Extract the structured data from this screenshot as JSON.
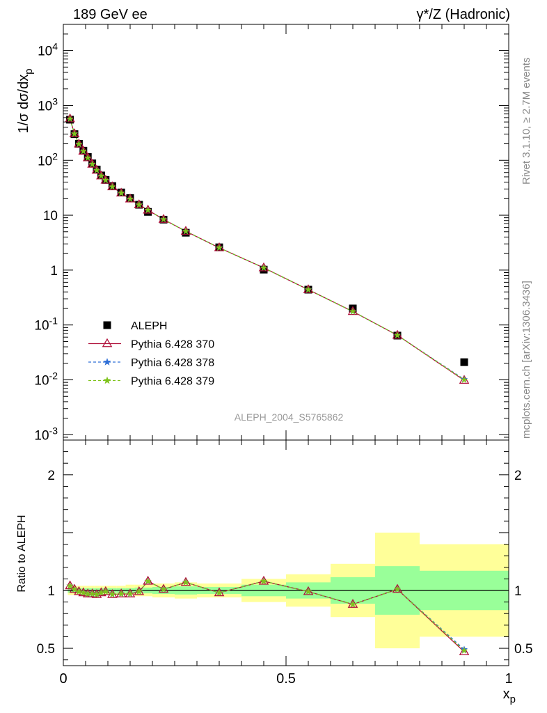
{
  "header": {
    "left_title": "189 GeV ee",
    "right_title": "γ*/Z (Hadronic)"
  },
  "side_labels": {
    "rivet": "Rivet 3.1.10, ≥ 2.7M events",
    "mcplots": "mcplots.cern.ch [arXiv:1306.3436]"
  },
  "watermark": "ALEPH_2004_S5765862",
  "colors": {
    "data": "#000000",
    "mc370": "#b0103a",
    "mc378": "#2f6fd6",
    "mc379": "#7fc31c",
    "band_outer": "#ffff99",
    "band_inner": "#99ff99"
  },
  "chart_data": [
    {
      "type": "scatter",
      "role": "main",
      "ylabel": "1/σ dσ/dx_p",
      "ylog": true,
      "xlim": [
        0,
        1
      ],
      "ylim": [
        0.0008,
        30000
      ],
      "yticks": [
        {
          "v": 0.001,
          "label": "10^-3"
        },
        {
          "v": 0.01,
          "label": "10^-2"
        },
        {
          "v": 0.1,
          "label": "10^-1"
        },
        {
          "v": 1,
          "label": "1"
        },
        {
          "v": 10,
          "label": "10"
        },
        {
          "v": 100,
          "label": "10^2"
        },
        {
          "v": 1000,
          "label": "10^3"
        },
        {
          "v": 10000,
          "label": "10^4"
        }
      ],
      "legend": {
        "position": "middle-left",
        "entries": [
          {
            "label": "ALEPH",
            "style": "data"
          },
          {
            "label": "Pythia 6.428 370",
            "style": "mc370"
          },
          {
            "label": "Pythia 6.428 378",
            "style": "mc378"
          },
          {
            "label": "Pythia 6.428 379",
            "style": "mc379"
          }
        ]
      },
      "x": [
        0.015,
        0.025,
        0.035,
        0.045,
        0.055,
        0.065,
        0.075,
        0.085,
        0.095,
        0.11,
        0.13,
        0.15,
        0.17,
        0.19,
        0.225,
        0.275,
        0.35,
        0.45,
        0.55,
        0.65,
        0.75,
        0.9
      ],
      "series": [
        {
          "name": "ALEPH",
          "values": [
            550,
            300,
            200,
            150,
            115,
            88,
            68,
            53,
            44,
            34,
            26,
            20.5,
            15.5,
            11.5,
            8.3,
            4.8,
            2.6,
            1.02,
            0.44,
            0.2,
            0.064,
            0.021
          ]
        },
        {
          "name": "Pythia 6.428 370",
          "values": [
            570,
            305,
            198,
            147,
            111,
            85,
            66,
            52,
            43.5,
            33,
            25.3,
            19.8,
            15.5,
            12.4,
            8.4,
            5.1,
            2.55,
            1.1,
            0.44,
            0.176,
            0.065,
            0.0098
          ]
        },
        {
          "name": "Pythia 6.428 378",
          "values": [
            570,
            305,
            198,
            147,
            111,
            85,
            66,
            52,
            43.5,
            33,
            25.3,
            19.8,
            15.5,
            12.4,
            8.4,
            5.1,
            2.55,
            1.1,
            0.44,
            0.176,
            0.065,
            0.0102
          ]
        },
        {
          "name": "Pythia 6.428 379",
          "values": [
            570,
            305,
            198,
            147,
            111,
            85,
            66,
            52,
            43.5,
            33,
            25.3,
            19.8,
            15.5,
            12.4,
            8.4,
            5.1,
            2.55,
            1.1,
            0.44,
            0.176,
            0.065,
            0.01
          ]
        }
      ]
    },
    {
      "type": "line",
      "role": "ratio",
      "ylabel": "Ratio to ALEPH",
      "xlabel": "x_p",
      "xlim": [
        0,
        1
      ],
      "ylim": [
        0.35,
        2.3
      ],
      "xticks": [
        {
          "v": 0,
          "label": "0"
        },
        {
          "v": 0.5,
          "label": "0.5"
        },
        {
          "v": 1,
          "label": "1"
        }
      ],
      "yticks": [
        {
          "v": 0.5,
          "label": "0.5"
        },
        {
          "v": 1,
          "label": "1"
        },
        {
          "v": 2,
          "label": "2"
        }
      ],
      "reference_line": 1,
      "bins": [
        {
          "lo": 0.01,
          "hi": 0.02,
          "outer": [
            0.96,
            1.04
          ],
          "inner": [
            0.98,
            1.02
          ]
        },
        {
          "lo": 0.02,
          "hi": 0.03,
          "outer": [
            0.96,
            1.04
          ],
          "inner": [
            0.98,
            1.02
          ]
        },
        {
          "lo": 0.03,
          "hi": 0.04,
          "outer": [
            0.96,
            1.04
          ],
          "inner": [
            0.98,
            1.02
          ]
        },
        {
          "lo": 0.04,
          "hi": 0.05,
          "outer": [
            0.96,
            1.04
          ],
          "inner": [
            0.98,
            1.02
          ]
        },
        {
          "lo": 0.05,
          "hi": 0.06,
          "outer": [
            0.96,
            1.04
          ],
          "inner": [
            0.98,
            1.02
          ]
        },
        {
          "lo": 0.06,
          "hi": 0.07,
          "outer": [
            0.96,
            1.04
          ],
          "inner": [
            0.98,
            1.02
          ]
        },
        {
          "lo": 0.07,
          "hi": 0.08,
          "outer": [
            0.96,
            1.04
          ],
          "inner": [
            0.98,
            1.02
          ]
        },
        {
          "lo": 0.08,
          "hi": 0.09,
          "outer": [
            0.96,
            1.04
          ],
          "inner": [
            0.98,
            1.02
          ]
        },
        {
          "lo": 0.09,
          "hi": 0.1,
          "outer": [
            0.96,
            1.04
          ],
          "inner": [
            0.98,
            1.02
          ]
        },
        {
          "lo": 0.1,
          "hi": 0.12,
          "outer": [
            0.96,
            1.04
          ],
          "inner": [
            0.98,
            1.02
          ]
        },
        {
          "lo": 0.12,
          "hi": 0.14,
          "outer": [
            0.96,
            1.04
          ],
          "inner": [
            0.98,
            1.02
          ]
        },
        {
          "lo": 0.14,
          "hi": 0.16,
          "outer": [
            0.96,
            1.05
          ],
          "inner": [
            0.98,
            1.02
          ]
        },
        {
          "lo": 0.16,
          "hi": 0.18,
          "outer": [
            0.95,
            1.05
          ],
          "inner": [
            0.975,
            1.025
          ]
        },
        {
          "lo": 0.18,
          "hi": 0.2,
          "outer": [
            0.95,
            1.05
          ],
          "inner": [
            0.975,
            1.025
          ]
        },
        {
          "lo": 0.2,
          "hi": 0.25,
          "outer": [
            0.94,
            1.06
          ],
          "inner": [
            0.97,
            1.03
          ]
        },
        {
          "lo": 0.25,
          "hi": 0.3,
          "outer": [
            0.93,
            1.07
          ],
          "inner": [
            0.965,
            1.035
          ]
        },
        {
          "lo": 0.3,
          "hi": 0.4,
          "outer": [
            0.94,
            1.06
          ],
          "inner": [
            0.97,
            1.03
          ]
        },
        {
          "lo": 0.4,
          "hi": 0.5,
          "outer": [
            0.9,
            1.1
          ],
          "inner": [
            0.95,
            1.05
          ]
        },
        {
          "lo": 0.5,
          "hi": 0.6,
          "outer": [
            0.86,
            1.14
          ],
          "inner": [
            0.93,
            1.07
          ]
        },
        {
          "lo": 0.6,
          "hi": 0.7,
          "outer": [
            0.77,
            1.23
          ],
          "inner": [
            0.885,
            1.115
          ]
        },
        {
          "lo": 0.7,
          "hi": 0.8,
          "outer": [
            0.5,
            1.5
          ],
          "inner": [
            0.79,
            1.21
          ]
        },
        {
          "lo": 0.8,
          "hi": 1.0,
          "outer": [
            0.6,
            1.4
          ],
          "inner": [
            0.83,
            1.17
          ]
        }
      ],
      "x": [
        0.015,
        0.025,
        0.035,
        0.045,
        0.055,
        0.065,
        0.075,
        0.085,
        0.095,
        0.11,
        0.13,
        0.15,
        0.17,
        0.19,
        0.225,
        0.275,
        0.35,
        0.45,
        0.55,
        0.65,
        0.75,
        0.9
      ],
      "series": [
        {
          "name": "Pythia 6.428 370",
          "values": [
            1.04,
            1.01,
            0.99,
            0.98,
            0.97,
            0.97,
            0.965,
            0.98,
            0.99,
            0.965,
            0.97,
            0.97,
            0.99,
            1.08,
            1.01,
            1.07,
            0.98,
            1.08,
            0.99,
            0.88,
            1.01,
            0.47
          ]
        },
        {
          "name": "Pythia 6.428 378",
          "values": [
            1.04,
            1.01,
            0.99,
            0.98,
            0.97,
            0.97,
            0.965,
            0.98,
            0.99,
            0.965,
            0.97,
            0.97,
            0.99,
            1.08,
            1.01,
            1.07,
            0.98,
            1.08,
            0.99,
            0.88,
            1.01,
            0.49
          ]
        },
        {
          "name": "Pythia 6.428 379",
          "values": [
            1.04,
            1.01,
            0.99,
            0.98,
            0.97,
            0.97,
            0.965,
            0.98,
            0.99,
            0.965,
            0.97,
            0.97,
            0.99,
            1.08,
            1.01,
            1.07,
            0.98,
            1.08,
            0.99,
            0.88,
            1.01,
            0.48
          ]
        }
      ]
    }
  ]
}
